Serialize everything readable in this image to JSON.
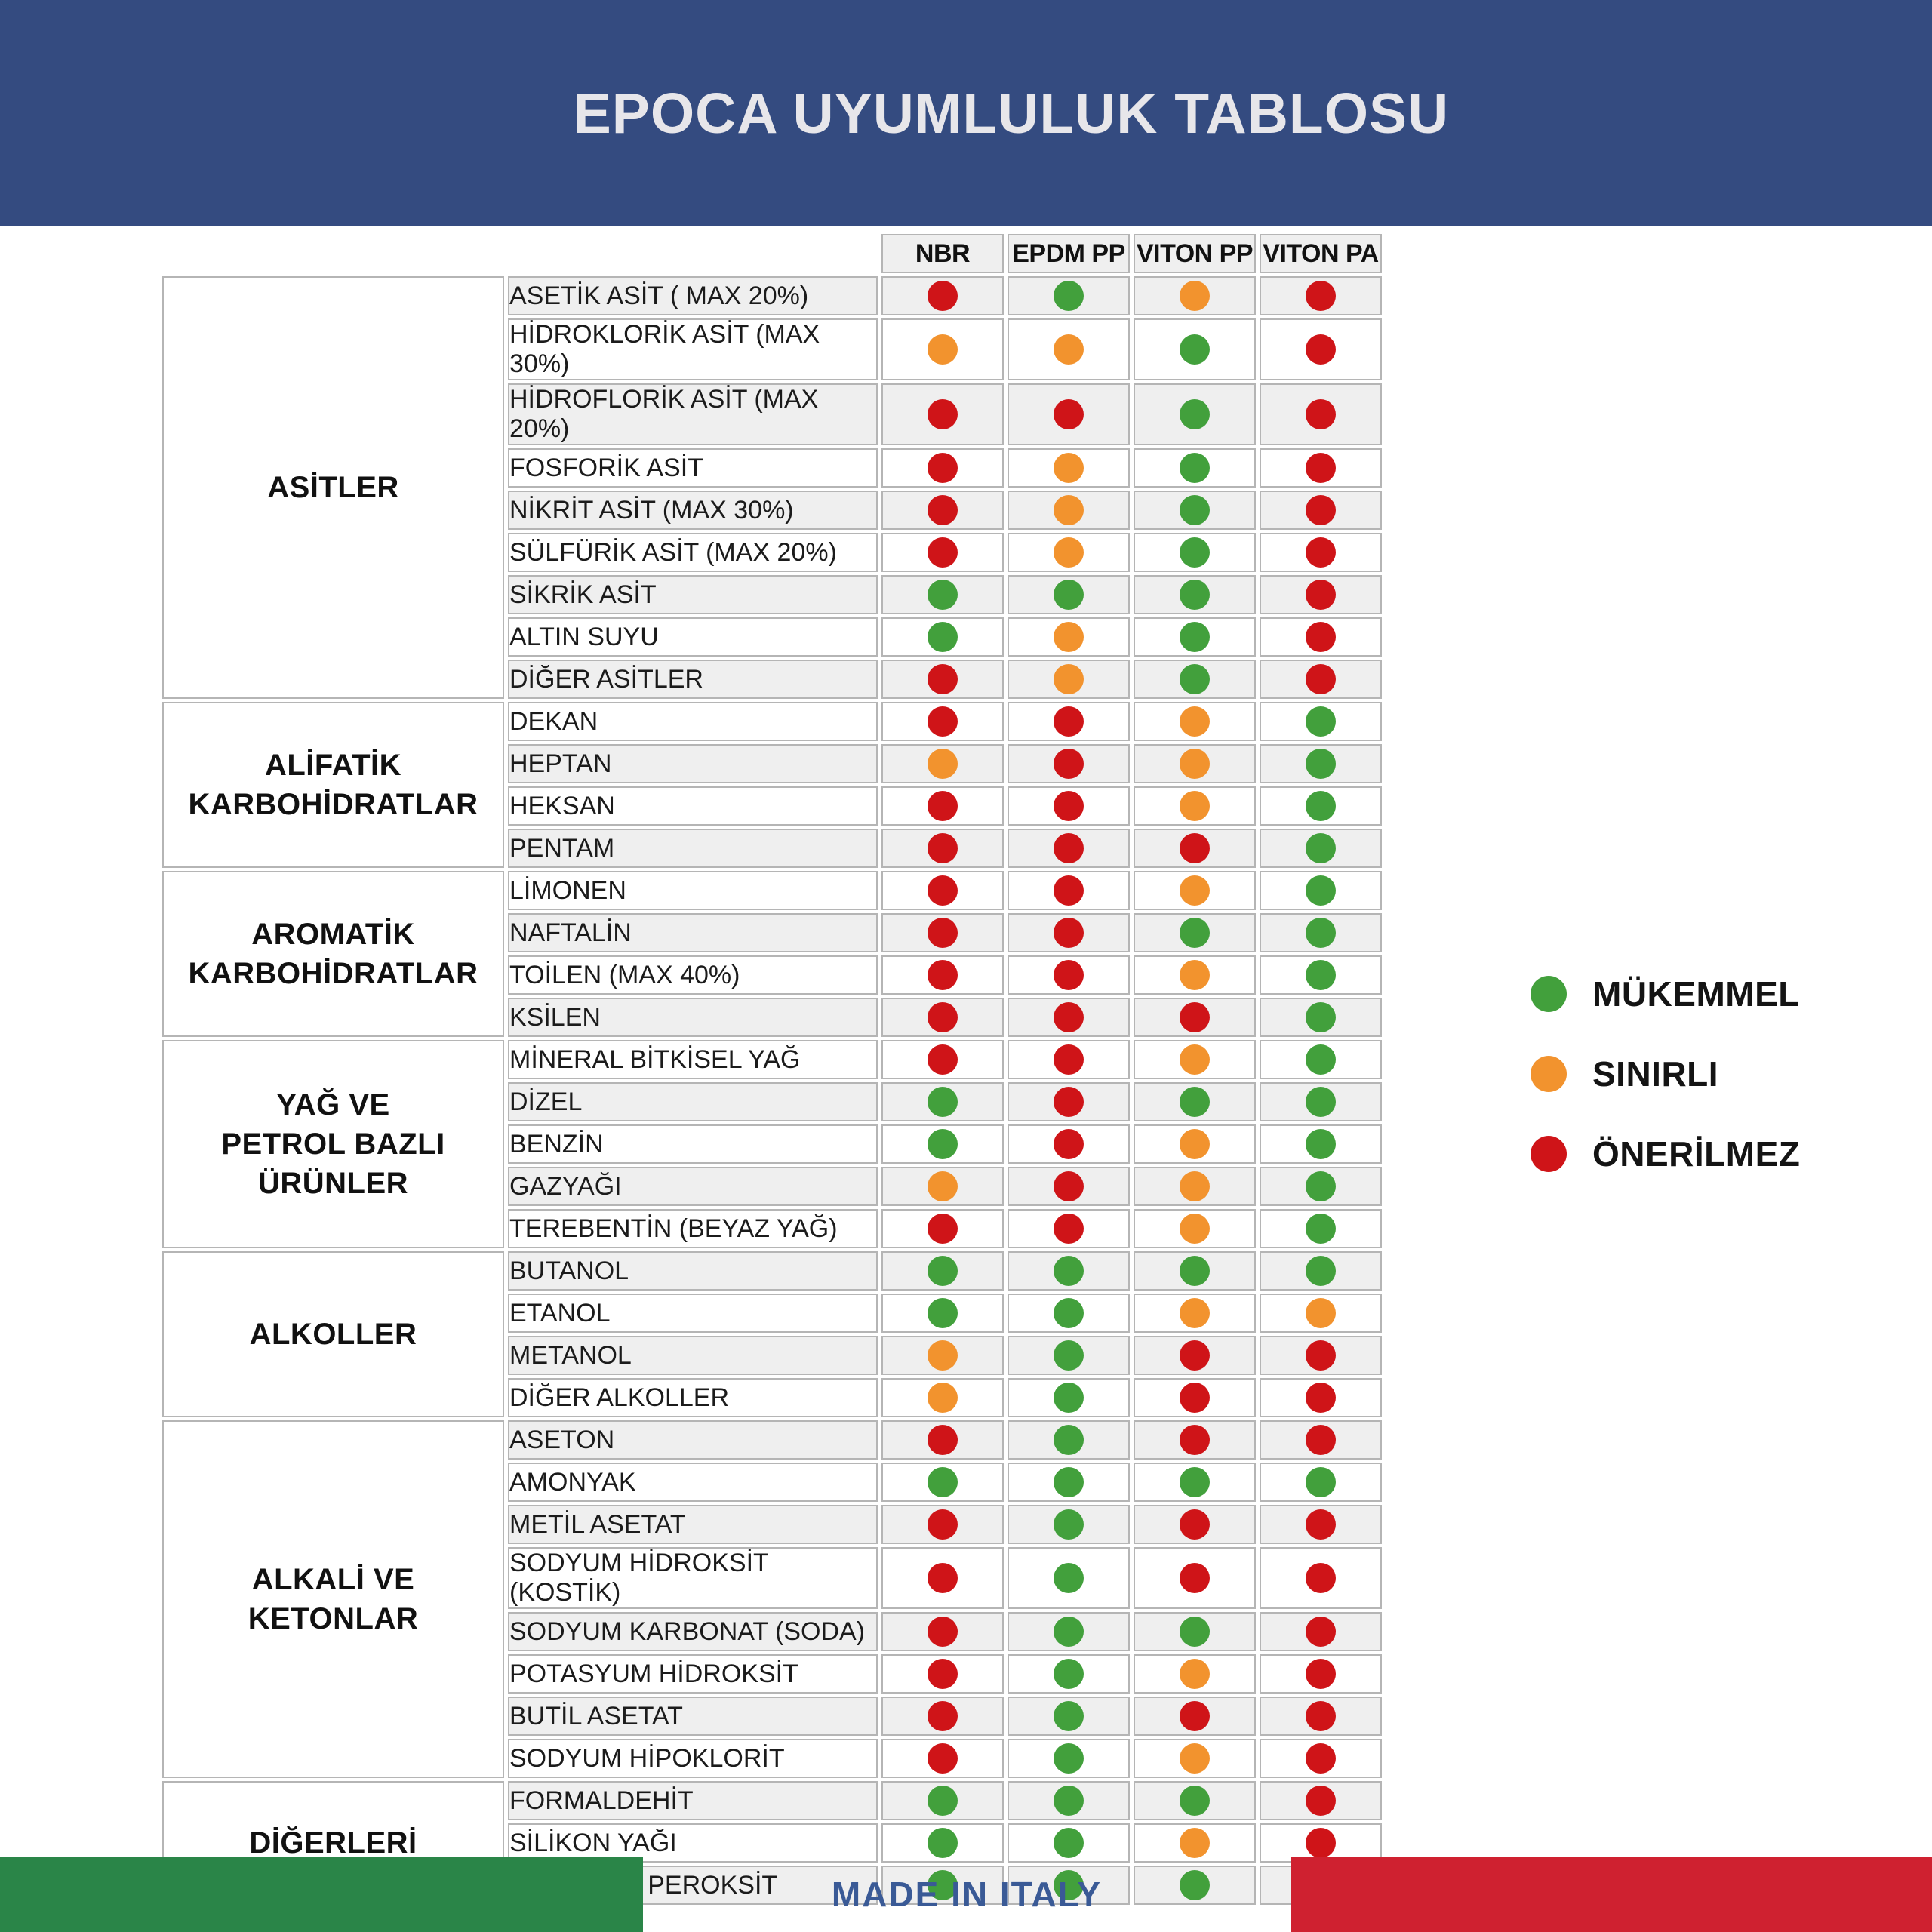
{
  "chart_data": {
    "type": "table",
    "title": "EPOCA UYUMLULUK TABLOSU",
    "columns": [
      "NBR",
      "EPDM PP",
      "VITON PP",
      "VITON PA"
    ],
    "legend": [
      {
        "code": "G",
        "label": "MÜKEMMEL"
      },
      {
        "code": "O",
        "label": "SINIRLI"
      },
      {
        "code": "R",
        "label": "ÖNERİLMEZ"
      }
    ],
    "status_colors": {
      "G": "#42A03C",
      "O": "#F2932E",
      "R": "#CF1418"
    },
    "groups": [
      {
        "label": "ASİTLER",
        "rows": [
          {
            "name": "ASETİK ASİT ( MAX 20%)",
            "ratings": [
              "R",
              "G",
              "O",
              "R"
            ]
          },
          {
            "name": "HİDROKLORİK ASİT (MAX 30%)",
            "ratings": [
              "O",
              "O",
              "G",
              "R"
            ]
          },
          {
            "name": "HİDROFLORİK ASİT (MAX 20%)",
            "ratings": [
              "R",
              "R",
              "G",
              "R"
            ]
          },
          {
            "name": "FOSFORİK ASİT",
            "ratings": [
              "R",
              "O",
              "G",
              "R"
            ]
          },
          {
            "name": "NİKRİT ASİT (MAX 30%)",
            "ratings": [
              "R",
              "O",
              "G",
              "R"
            ]
          },
          {
            "name": "SÜLFÜRİK ASİT (MAX 20%)",
            "ratings": [
              "R",
              "O",
              "G",
              "R"
            ]
          },
          {
            "name": "SİKRİK ASİT",
            "ratings": [
              "G",
              "G",
              "G",
              "R"
            ]
          },
          {
            "name": "ALTIN SUYU",
            "ratings": [
              "G",
              "O",
              "G",
              "R"
            ]
          },
          {
            "name": "DİĞER ASİTLER",
            "ratings": [
              "R",
              "O",
              "G",
              "R"
            ]
          }
        ]
      },
      {
        "label": "ALİFATİK\nKARBOHİDRATLAR",
        "rows": [
          {
            "name": "DEKAN",
            "ratings": [
              "R",
              "R",
              "O",
              "G"
            ]
          },
          {
            "name": "HEPTAN",
            "ratings": [
              "O",
              "R",
              "O",
              "G"
            ]
          },
          {
            "name": "HEKSAN",
            "ratings": [
              "R",
              "R",
              "O",
              "G"
            ]
          },
          {
            "name": "PENTAM",
            "ratings": [
              "R",
              "R",
              "R",
              "G"
            ]
          }
        ]
      },
      {
        "label": "AROMATİK\nKARBOHİDRATLAR",
        "rows": [
          {
            "name": "LİMONEN",
            "ratings": [
              "R",
              "R",
              "O",
              "G"
            ]
          },
          {
            "name": "NAFTALİN",
            "ratings": [
              "R",
              "R",
              "G",
              "G"
            ]
          },
          {
            "name": "TOİLEN (MAX 40%)",
            "ratings": [
              "R",
              "R",
              "O",
              "G"
            ]
          },
          {
            "name": "KSİLEN",
            "ratings": [
              "R",
              "R",
              "R",
              "G"
            ]
          }
        ]
      },
      {
        "label": "YAĞ VE\nPETROL BAZLI\nÜRÜNLER",
        "rows": [
          {
            "name": "MİNERAL BİTKİSEL YAĞ",
            "ratings": [
              "R",
              "R",
              "O",
              "G"
            ]
          },
          {
            "name": "DİZEL",
            "ratings": [
              "G",
              "R",
              "G",
              "G"
            ]
          },
          {
            "name": "BENZİN",
            "ratings": [
              "G",
              "R",
              "O",
              "G"
            ]
          },
          {
            "name": "GAZYAĞI",
            "ratings": [
              "O",
              "R",
              "O",
              "G"
            ]
          },
          {
            "name": "TEREBENTİN (BEYAZ YAĞ)",
            "ratings": [
              "R",
              "R",
              "O",
              "G"
            ]
          }
        ]
      },
      {
        "label": "ALKOLLER",
        "rows": [
          {
            "name": "BUTANOL",
            "ratings": [
              "G",
              "G",
              "G",
              "G"
            ]
          },
          {
            "name": "ETANOL",
            "ratings": [
              "G",
              "G",
              "O",
              "O"
            ]
          },
          {
            "name": "METANOL",
            "ratings": [
              "O",
              "G",
              "R",
              "R"
            ]
          },
          {
            "name": "DİĞER ALKOLLER",
            "ratings": [
              "O",
              "G",
              "R",
              "R"
            ]
          }
        ]
      },
      {
        "label": "ALKALİ VE\nKETONLAR",
        "rows": [
          {
            "name": "ASETON",
            "ratings": [
              "R",
              "G",
              "R",
              "R"
            ]
          },
          {
            "name": "AMONYAK",
            "ratings": [
              "G",
              "G",
              "G",
              "G"
            ]
          },
          {
            "name": "METİL ASETAT",
            "ratings": [
              "R",
              "G",
              "R",
              "R"
            ]
          },
          {
            "name": "SODYUM HİDROKSİT (KOSTİK)",
            "ratings": [
              "R",
              "G",
              "R",
              "R"
            ]
          },
          {
            "name": "SODYUM KARBONAT (SODA)",
            "ratings": [
              "R",
              "G",
              "G",
              "R"
            ]
          },
          {
            "name": "POTASYUM HİDROKSİT",
            "ratings": [
              "R",
              "G",
              "O",
              "R"
            ]
          },
          {
            "name": "BUTİL ASETAT",
            "ratings": [
              "R",
              "G",
              "R",
              "R"
            ]
          },
          {
            "name": "SODYUM HİPOKLORİT",
            "ratings": [
              "R",
              "G",
              "O",
              "R"
            ]
          }
        ]
      },
      {
        "label": "DİĞERLERİ",
        "rows": [
          {
            "name": "FORMALDEHİT",
            "ratings": [
              "G",
              "G",
              "G",
              "R"
            ]
          },
          {
            "name": "SİLİKON YAĞI",
            "ratings": [
              "G",
              "G",
              "O",
              "R"
            ]
          },
          {
            "name": "HİDROJEN PEROKSİT",
            "ratings": [
              "G",
              "G",
              "G",
              "G"
            ]
          }
        ]
      }
    ]
  },
  "footer": {
    "text": "MADE IN ITALY",
    "flag_green": "#2A8548",
    "flag_red": "#CF2130",
    "text_color": "#3A5A96"
  },
  "theme": {
    "header_bg": "#344B80",
    "title_color": "#E7E6EA",
    "row_shade": "#EFEFEF",
    "grid_border": "#B5B5B5"
  }
}
